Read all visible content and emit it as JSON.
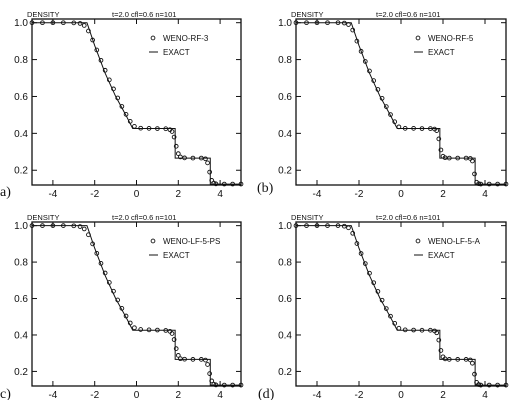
{
  "chart_data": [
    {
      "type": "line",
      "panel_label": "a)",
      "ylabel": "DENSITY",
      "header": "t=2.0   cfl=0.6   n=101",
      "xlim": [
        -5,
        5
      ],
      "ylim": [
        0.12,
        1.02
      ],
      "xticks": [
        -4,
        -2,
        0,
        2,
        4
      ],
      "yticks": [
        0.2,
        0.4,
        0.6,
        0.8,
        1.0
      ],
      "ytick_labels": [
        "0.2",
        "0.4",
        "0.6",
        "0.8",
        "1.0"
      ],
      "legend": {
        "placement": "top-right",
        "numeric_label": "WENO-RF-3",
        "exact_label": "EXACT"
      },
      "series": [
        {
          "name": "EXACT",
          "style": "line",
          "x": [
            -5,
            -2.37,
            -2.0,
            -1.5,
            -1.0,
            -0.5,
            -0.18,
            1.85,
            1.85,
            3.53,
            3.53,
            5
          ],
          "y": [
            1.0,
            1.0,
            0.876,
            0.726,
            0.601,
            0.497,
            0.426,
            0.426,
            0.266,
            0.266,
            0.125,
            0.125
          ]
        },
        {
          "name": "WENO-RF-3",
          "style": "markers",
          "x": [
            -5,
            -4.5,
            -4,
            -3.5,
            -3,
            -2.7,
            -2.5,
            -2.3,
            -2.1,
            -1.9,
            -1.7,
            -1.5,
            -1.3,
            -1.1,
            -0.9,
            -0.7,
            -0.5,
            -0.3,
            -0.1,
            0.2,
            0.6,
            1.0,
            1.4,
            1.6,
            1.7,
            1.8,
            1.9,
            2.0,
            2.1,
            2.3,
            2.7,
            3.1,
            3.3,
            3.4,
            3.5,
            3.6,
            3.7,
            3.8,
            4.2,
            4.6,
            5
          ],
          "y": [
            1.0,
            1.0,
            1.0,
            1.0,
            0.999,
            0.996,
            0.985,
            0.955,
            0.906,
            0.852,
            0.796,
            0.742,
            0.69,
            0.641,
            0.592,
            0.546,
            0.503,
            0.465,
            0.438,
            0.428,
            0.427,
            0.426,
            0.425,
            0.42,
            0.41,
            0.38,
            0.33,
            0.29,
            0.272,
            0.267,
            0.266,
            0.266,
            0.262,
            0.24,
            0.19,
            0.145,
            0.13,
            0.126,
            0.125,
            0.125,
            0.125
          ]
        }
      ]
    },
    {
      "type": "line",
      "panel_label": "(b)",
      "ylabel": "DENSITY",
      "header": "t=2.0   cfl=0.6   n=101",
      "xlim": [
        -5,
        5
      ],
      "ylim": [
        0.12,
        1.02
      ],
      "xticks": [
        -4,
        -2,
        0,
        2,
        4
      ],
      "yticks": [
        0.2,
        0.4,
        0.6,
        0.8,
        1.0
      ],
      "ytick_labels": [
        "0.2",
        "0.4",
        "0.6",
        "0.8",
        "1.0"
      ],
      "legend": {
        "placement": "top-right",
        "numeric_label": "WENO-RF-5",
        "exact_label": "EXACT"
      },
      "series": [
        {
          "name": "EXACT",
          "style": "line",
          "x": [
            -5,
            -2.37,
            -2.0,
            -1.5,
            -1.0,
            -0.5,
            -0.18,
            1.85,
            1.85,
            3.53,
            3.53,
            5
          ],
          "y": [
            1.0,
            1.0,
            0.876,
            0.726,
            0.601,
            0.497,
            0.426,
            0.426,
            0.266,
            0.266,
            0.125,
            0.125
          ]
        },
        {
          "name": "WENO-RF-5",
          "style": "markers",
          "x": [
            -5,
            -4.5,
            -4,
            -3.5,
            -3,
            -2.7,
            -2.5,
            -2.3,
            -2.1,
            -1.9,
            -1.7,
            -1.5,
            -1.3,
            -1.1,
            -0.9,
            -0.7,
            -0.5,
            -0.3,
            -0.1,
            0.2,
            0.6,
            1.0,
            1.4,
            1.6,
            1.7,
            1.8,
            1.9,
            2.0,
            2.1,
            2.3,
            2.7,
            3.1,
            3.3,
            3.4,
            3.5,
            3.6,
            3.7,
            3.8,
            4.2,
            4.6,
            5
          ],
          "y": [
            1.0,
            1.0,
            1.0,
            1.0,
            1.0,
            0.998,
            0.99,
            0.96,
            0.9,
            0.845,
            0.79,
            0.738,
            0.686,
            0.638,
            0.59,
            0.545,
            0.502,
            0.463,
            0.435,
            0.427,
            0.427,
            0.426,
            0.426,
            0.423,
            0.415,
            0.37,
            0.31,
            0.276,
            0.268,
            0.266,
            0.266,
            0.266,
            0.264,
            0.25,
            0.18,
            0.135,
            0.127,
            0.125,
            0.125,
            0.125,
            0.125
          ]
        }
      ]
    },
    {
      "type": "line",
      "panel_label": "c)",
      "ylabel": "DENSITY",
      "header": "t=2.0   cfl=0.6   n=101",
      "xlim": [
        -5,
        5
      ],
      "ylim": [
        0.12,
        1.02
      ],
      "xticks": [
        -4,
        -2,
        0,
        2,
        4
      ],
      "yticks": [
        0.2,
        0.4,
        0.6,
        0.8,
        1.0
      ],
      "ytick_labels": [
        "0.2",
        "0.4",
        "0.6",
        "0.8",
        "1.0"
      ],
      "legend": {
        "placement": "top-right",
        "numeric_label": "WENO-LF-5-PS",
        "exact_label": "EXACT"
      },
      "series": [
        {
          "name": "EXACT",
          "style": "line",
          "x": [
            -5,
            -2.37,
            -2.0,
            -1.5,
            -1.0,
            -0.5,
            -0.18,
            1.85,
            1.85,
            3.53,
            3.53,
            5
          ],
          "y": [
            1.0,
            1.0,
            0.876,
            0.726,
            0.601,
            0.497,
            0.426,
            0.426,
            0.266,
            0.266,
            0.125,
            0.125
          ]
        },
        {
          "name": "WENO-LF-5-PS",
          "style": "markers",
          "x": [
            -5,
            -4.5,
            -4,
            -3.5,
            -3,
            -2.7,
            -2.5,
            -2.3,
            -2.1,
            -1.9,
            -1.7,
            -1.5,
            -1.3,
            -1.1,
            -0.9,
            -0.7,
            -0.5,
            -0.3,
            -0.1,
            0.2,
            0.6,
            1.0,
            1.4,
            1.6,
            1.7,
            1.8,
            1.9,
            2.0,
            2.1,
            2.3,
            2.7,
            3.1,
            3.3,
            3.4,
            3.5,
            3.6,
            3.7,
            3.8,
            4.2,
            4.6,
            5
          ],
          "y": [
            1.0,
            1.0,
            1.0,
            1.0,
            0.999,
            0.995,
            0.982,
            0.95,
            0.9,
            0.848,
            0.793,
            0.74,
            0.688,
            0.64,
            0.592,
            0.546,
            0.504,
            0.466,
            0.44,
            0.43,
            0.428,
            0.427,
            0.425,
            0.42,
            0.408,
            0.375,
            0.325,
            0.288,
            0.27,
            0.267,
            0.266,
            0.266,
            0.262,
            0.238,
            0.188,
            0.148,
            0.13,
            0.126,
            0.125,
            0.125,
            0.125
          ]
        }
      ]
    },
    {
      "type": "line",
      "panel_label": "(d)",
      "ylabel": "DENSITY",
      "header": "t=2.0   cfl=0.6   n=101",
      "xlim": [
        -5,
        5
      ],
      "ylim": [
        0.12,
        1.02
      ],
      "xticks": [
        -4,
        -2,
        0,
        2,
        4
      ],
      "yticks": [
        0.2,
        0.4,
        0.6,
        0.8,
        1.0
      ],
      "ytick_labels": [
        "0.2",
        "0.4",
        "0.6",
        "0.8",
        "1.0"
      ],
      "legend": {
        "placement": "top-right",
        "numeric_label": "WENO-LF-5-A",
        "exact_label": "EXACT"
      },
      "series": [
        {
          "name": "EXACT",
          "style": "line",
          "x": [
            -5,
            -2.37,
            -2.0,
            -1.5,
            -1.0,
            -0.5,
            -0.18,
            1.85,
            1.85,
            3.53,
            3.53,
            5
          ],
          "y": [
            1.0,
            1.0,
            0.876,
            0.726,
            0.601,
            0.497,
            0.426,
            0.426,
            0.266,
            0.266,
            0.125,
            0.125
          ]
        },
        {
          "name": "WENO-LF-5-A",
          "style": "markers",
          "x": [
            -5,
            -4.5,
            -4,
            -3.5,
            -3,
            -2.7,
            -2.5,
            -2.3,
            -2.1,
            -1.9,
            -1.7,
            -1.5,
            -1.3,
            -1.1,
            -0.9,
            -0.7,
            -0.5,
            -0.3,
            -0.1,
            0.2,
            0.6,
            1.0,
            1.4,
            1.6,
            1.7,
            1.8,
            1.9,
            2.0,
            2.1,
            2.3,
            2.7,
            3.1,
            3.3,
            3.4,
            3.5,
            3.6,
            3.7,
            3.8,
            4.2,
            4.6,
            5
          ],
          "y": [
            1.0,
            1.0,
            1.0,
            1.0,
            1.0,
            0.997,
            0.988,
            0.958,
            0.902,
            0.847,
            0.792,
            0.739,
            0.687,
            0.639,
            0.591,
            0.545,
            0.503,
            0.464,
            0.437,
            0.428,
            0.427,
            0.426,
            0.426,
            0.422,
            0.412,
            0.372,
            0.315,
            0.28,
            0.269,
            0.266,
            0.266,
            0.266,
            0.263,
            0.245,
            0.185,
            0.14,
            0.128,
            0.125,
            0.125,
            0.125,
            0.125
          ]
        }
      ]
    }
  ]
}
